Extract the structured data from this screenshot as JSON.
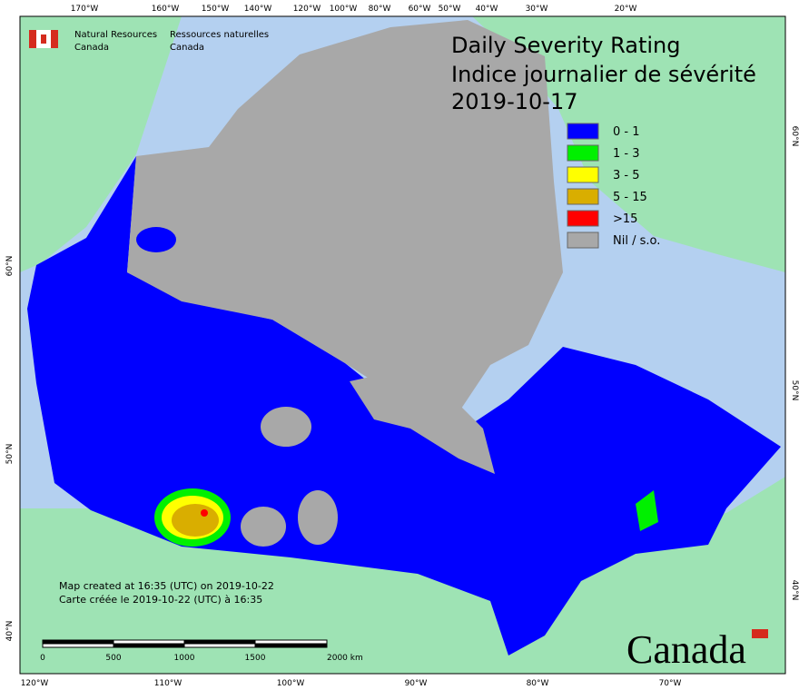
{
  "header": {
    "agency_en": [
      "Natural Resources",
      "Canada"
    ],
    "agency_fr": [
      "Ressources naturelles",
      "Canada"
    ]
  },
  "title": {
    "lines": [
      "Daily Severity Rating",
      "Indice journalier de sévérité",
      "2019-10-17"
    ]
  },
  "legend": [
    {
      "label": "0 - 1",
      "color": "#0000ff"
    },
    {
      "label": "1 - 3",
      "color": "#00f000"
    },
    {
      "label": "3 - 5",
      "color": "#ffff00"
    },
    {
      "label": "5 - 15",
      "color": "#d9ae00"
    },
    {
      "label": ">15",
      "color": "#ff0000"
    },
    {
      "label": "Nil / s.o.",
      "color": "#a8a8a8"
    }
  ],
  "graticule": {
    "top": [
      "170°W",
      "160°W",
      "150°W",
      "140°W",
      "120°W",
      "100°W",
      "80°W",
      "60°W",
      "50°W",
      "40°W",
      "30°W",
      "20°W"
    ],
    "bottom": [
      "120°W",
      "110°W",
      "100°W",
      "90°W",
      "80°W",
      "70°W"
    ],
    "left": [
      "60°N",
      "50°N",
      "40°N"
    ],
    "right": [
      "60°N",
      "50°N",
      "40°N"
    ]
  },
  "footer": {
    "lines": [
      "Map created at 16:35 (UTC) on 2019-10-22",
      "Carte créée le 2019-10-22 (UTC) à 16:35"
    ]
  },
  "scale_bar": {
    "labels": [
      "0",
      "500",
      "1000",
      "1500",
      "2000 km"
    ]
  },
  "wordmark": "Canada"
}
